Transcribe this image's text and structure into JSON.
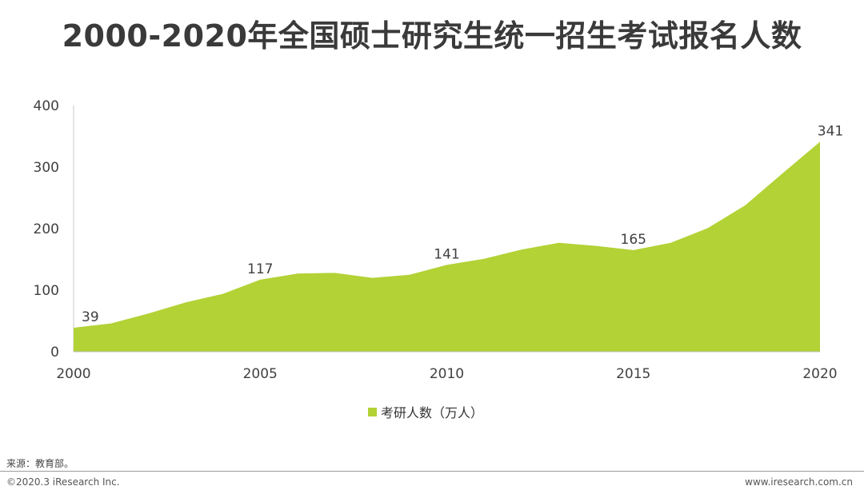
{
  "chart_data": {
    "type": "area",
    "title": "2000-2020年全国硕士研究生统一招生考试报名人数",
    "series": [
      {
        "name": "考研人数（万人）",
        "color": "#b2d235",
        "x": [
          2000,
          2001,
          2002,
          2003,
          2004,
          2005,
          2006,
          2007,
          2008,
          2009,
          2010,
          2011,
          2012,
          2013,
          2014,
          2015,
          2016,
          2017,
          2018,
          2019,
          2020
        ],
        "values": [
          39,
          46,
          62,
          80,
          94,
          117,
          127,
          128,
          120,
          125,
          141,
          151,
          166,
          177,
          172,
          165,
          177,
          201,
          238,
          290,
          341
        ]
      }
    ],
    "data_labels": [
      {
        "year": 2000,
        "text": "39"
      },
      {
        "year": 2005,
        "text": "117"
      },
      {
        "year": 2010,
        "text": "141"
      },
      {
        "year": 2015,
        "text": "165"
      },
      {
        "year": 2020,
        "text": "341"
      }
    ],
    "x_ticks": [
      "2000",
      "2005",
      "2010",
      "2015",
      "2020"
    ],
    "y_ticks": [
      "0",
      "100",
      "200",
      "300",
      "400"
    ],
    "xlim": [
      2000,
      2020
    ],
    "ylim": [
      0,
      400
    ],
    "xlabel": "",
    "ylabel": "",
    "legend_position": "bottom-center"
  },
  "source_text": "来源：教育部。",
  "copyright_text": "©2020.3 iResearch Inc.",
  "site_text": "www.iresearch.com.cn"
}
